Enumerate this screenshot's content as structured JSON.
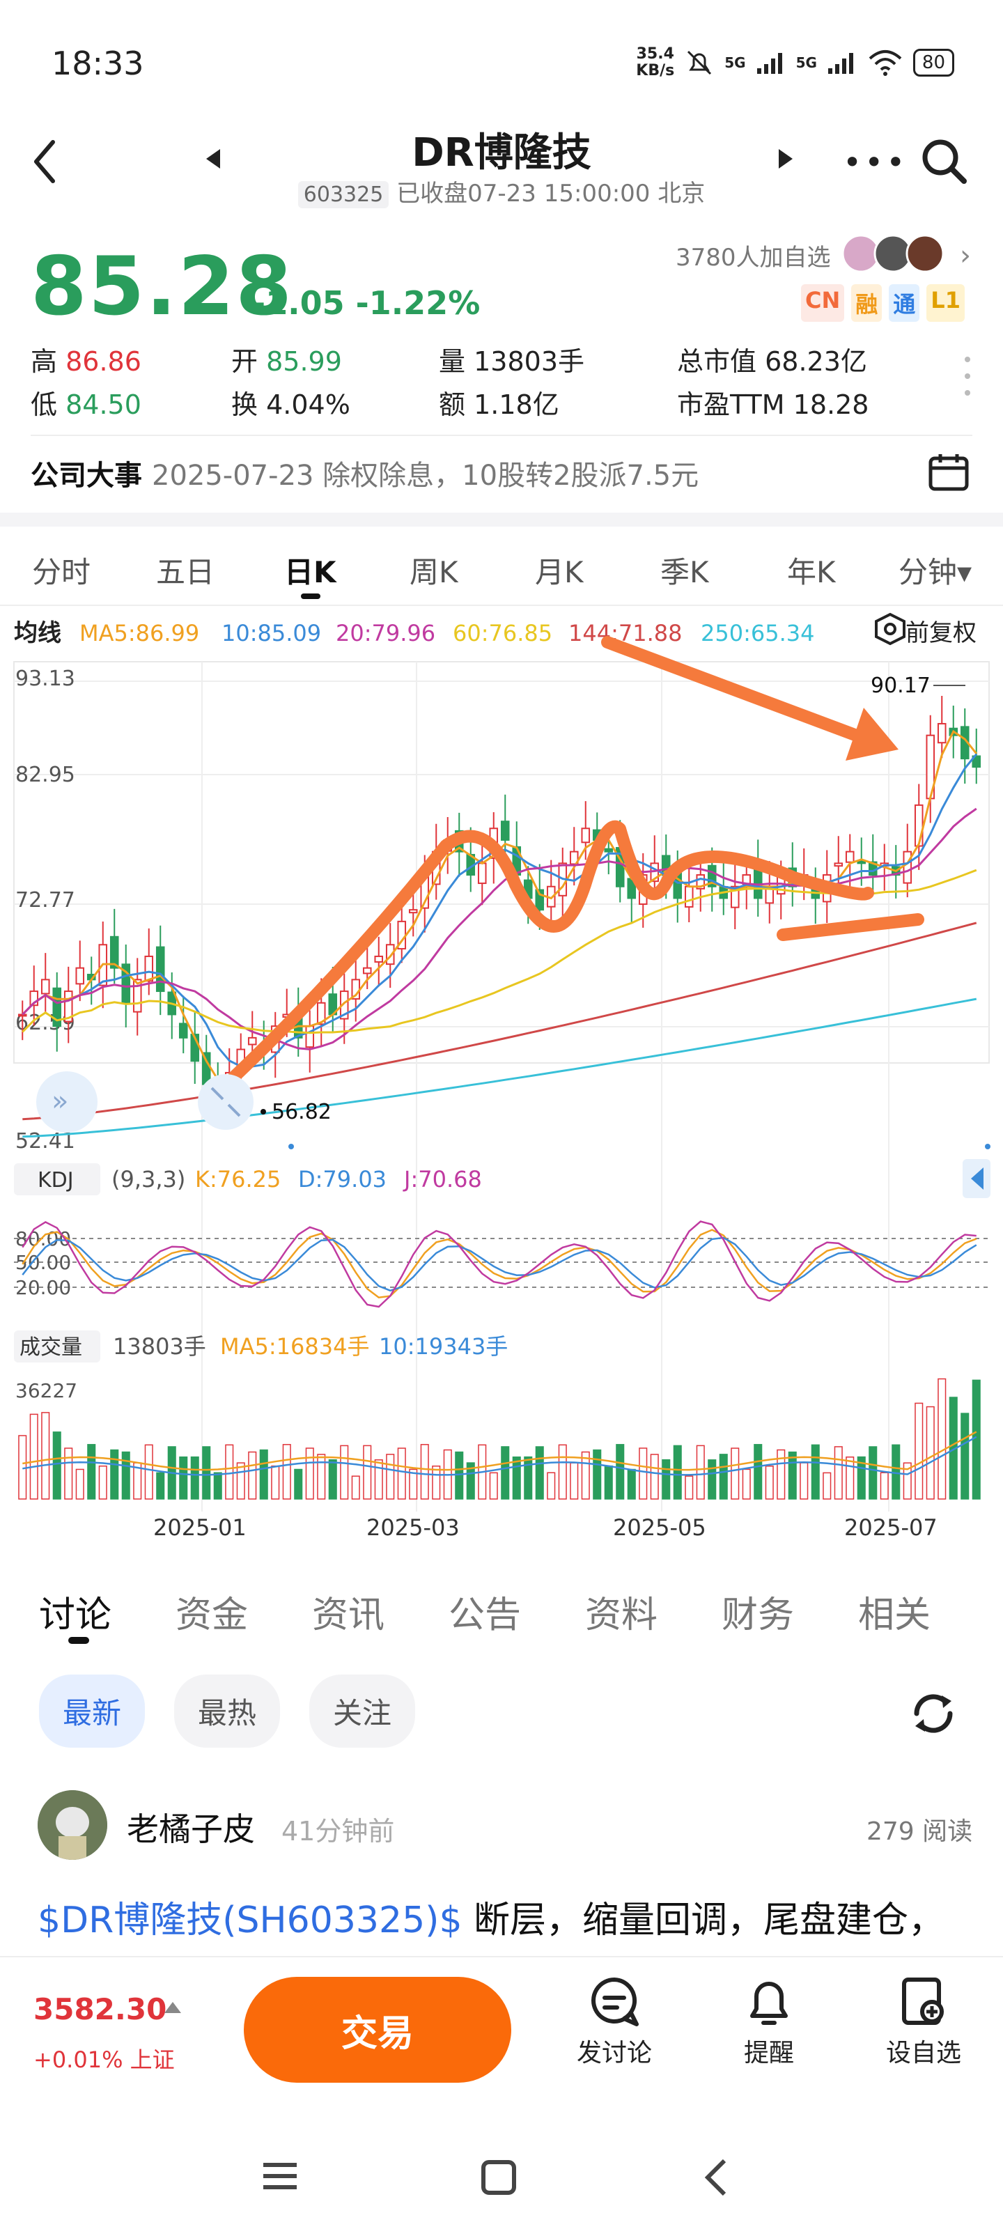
{
  "status_bar": {
    "time": "18:33",
    "net_speed_top": "35.4",
    "net_speed_bottom": "KB/s",
    "net1": "5G",
    "net2": "5G",
    "battery": "80"
  },
  "header": {
    "title": "DR博隆技",
    "stock_code": "603325",
    "market_status": "已收盘07-23 15:00:00 北京"
  },
  "quote": {
    "price": "85.28",
    "change": "-1.05 -1.22%",
    "followers": "3780人加自选",
    "tags": [
      "CN",
      "融",
      "通",
      "L1"
    ],
    "stats": {
      "high_label": "高",
      "high_value": "86.86",
      "open_label": "开",
      "open_value": "85.99",
      "volume_label": "量",
      "volume_value": "13803手",
      "mcap_label": "总市值",
      "mcap_value": "68.23亿",
      "low_label": "低",
      "low_value": "84.50",
      "turnover_label": "换",
      "turnover_value": "4.04%",
      "amount_label": "额",
      "amount_value": "1.18亿",
      "pe_label": "市盈TTM",
      "pe_value": "18.28"
    }
  },
  "event": {
    "label": "公司大事",
    "text": "2025-07-23 除权除息，10股转2股派7.5元"
  },
  "chart_tabs": [
    "分时",
    "五日",
    "日K",
    "周K",
    "月K",
    "季K",
    "年K",
    "分钟▾"
  ],
  "chart_tabs_active": 2,
  "ma_bar": {
    "label": "均线",
    "ma5": "MA5:86.99",
    "ma10": "10:85.09",
    "ma20": "20:79.96",
    "ma60": "60:76.85",
    "ma144": "144:71.88",
    "ma250": "250:65.34",
    "adjust": "前复权"
  },
  "kdj_bar": {
    "label": "KDJ",
    "params": "(9,3,3)",
    "k": "K:76.25",
    "d": "D:79.03",
    "j": "J:70.68",
    "levels": [
      "80.00",
      "50.00",
      "20.00"
    ]
  },
  "volume_bar": {
    "label": "成交量",
    "vol": "13803手",
    "ma5": "MA5:16834手",
    "ma10": "10:19343手",
    "max": "36227"
  },
  "chart_data": {
    "type": "candlestick",
    "y_ticks": [
      "93.13",
      "82.95",
      "72.77",
      "62.59",
      "52.41"
    ],
    "ylim": [
      52.41,
      93.13
    ],
    "x_ticks": [
      "2025-01",
      "2025-03",
      "2025-05",
      "2025-07"
    ],
    "annotations": {
      "high": "90.17",
      "low": "56.82"
    },
    "ma_values": {
      "MA5": 86.99,
      "MA10": 85.09,
      "MA20": 79.96,
      "MA60": 76.85,
      "MA144": 71.88,
      "MA250": 65.34
    },
    "colors": {
      "up": "#e0343a",
      "down": "#2a9d5c",
      "ma5": "#f0a020",
      "ma10": "#3a8ad8",
      "ma20": "#c03aa0",
      "ma60": "#e8c620",
      "ma144": "#d04848",
      "ma250": "#38c0d8",
      "annotation": "#f57a3c"
    },
    "close_path": [
      64,
      66,
      67,
      63,
      66,
      68,
      67,
      70,
      68,
      65,
      67,
      69,
      66,
      64,
      62,
      60,
      58,
      57.2,
      59,
      61,
      62,
      61,
      63,
      64,
      62,
      63,
      65,
      64,
      66,
      67,
      68,
      69,
      70,
      72,
      73,
      76,
      78,
      79,
      78,
      76,
      77,
      80,
      79,
      76,
      74,
      73,
      75,
      77,
      78,
      80,
      79,
      78,
      75,
      74,
      76,
      77,
      76,
      74,
      75,
      76,
      75,
      74,
      75,
      76,
      74,
      75,
      76,
      75,
      76,
      74,
      76,
      77,
      78,
      77,
      76,
      77,
      76,
      78,
      82,
      88,
      89,
      88,
      86,
      85.28
    ]
  },
  "bottom_tabs": [
    "讨论",
    "资金",
    "资讯",
    "公告",
    "资料",
    "财务",
    "相关"
  ],
  "filters": [
    "最新",
    "最热",
    "关注"
  ],
  "post": {
    "user": "老橘子皮",
    "time": "41分钟前",
    "views": "279 阅读",
    "link": "$DR博隆技(SH603325)$",
    "text": " 断层，缩量回调，尾盘建仓，"
  },
  "footer": {
    "index_value": "3582.30",
    "index_change": "+0.01% 上证",
    "trade": "交易",
    "discuss": "发讨论",
    "remind": "提醒",
    "watchlist": "设自选"
  }
}
